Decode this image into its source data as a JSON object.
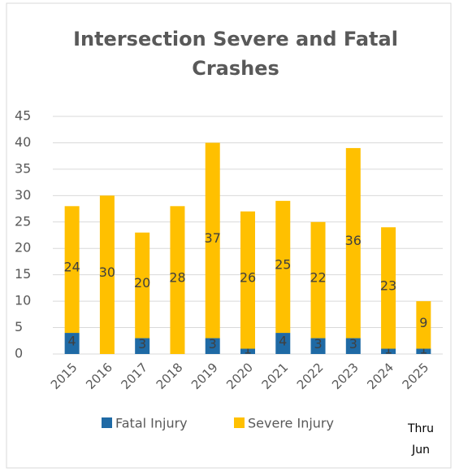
{
  "chart_data": {
    "type": "stacked_bar",
    "title": "Intersection Severe and Fatal Crashes",
    "annotation": "Thru Jun",
    "categories": [
      "2015",
      "2016",
      "2017",
      "2018",
      "2019",
      "2020",
      "2021",
      "2022",
      "2023",
      "2024",
      "2025"
    ],
    "series": [
      {
        "name": "Fatal Injury",
        "color": "#1f6aa5",
        "values": [
          4,
          0,
          3,
          0,
          3,
          1,
          4,
          3,
          3,
          1,
          1
        ]
      },
      {
        "name": "Severe Injury",
        "color": "#ffc000",
        "values": [
          24,
          30,
          20,
          28,
          37,
          26,
          25,
          22,
          36,
          23,
          9
        ]
      }
    ],
    "ylim": [
      0,
      45
    ],
    "yticks": [
      0,
      5,
      10,
      15,
      20,
      25,
      30,
      35,
      40,
      45
    ],
    "grid": true,
    "legend": "bottom"
  }
}
